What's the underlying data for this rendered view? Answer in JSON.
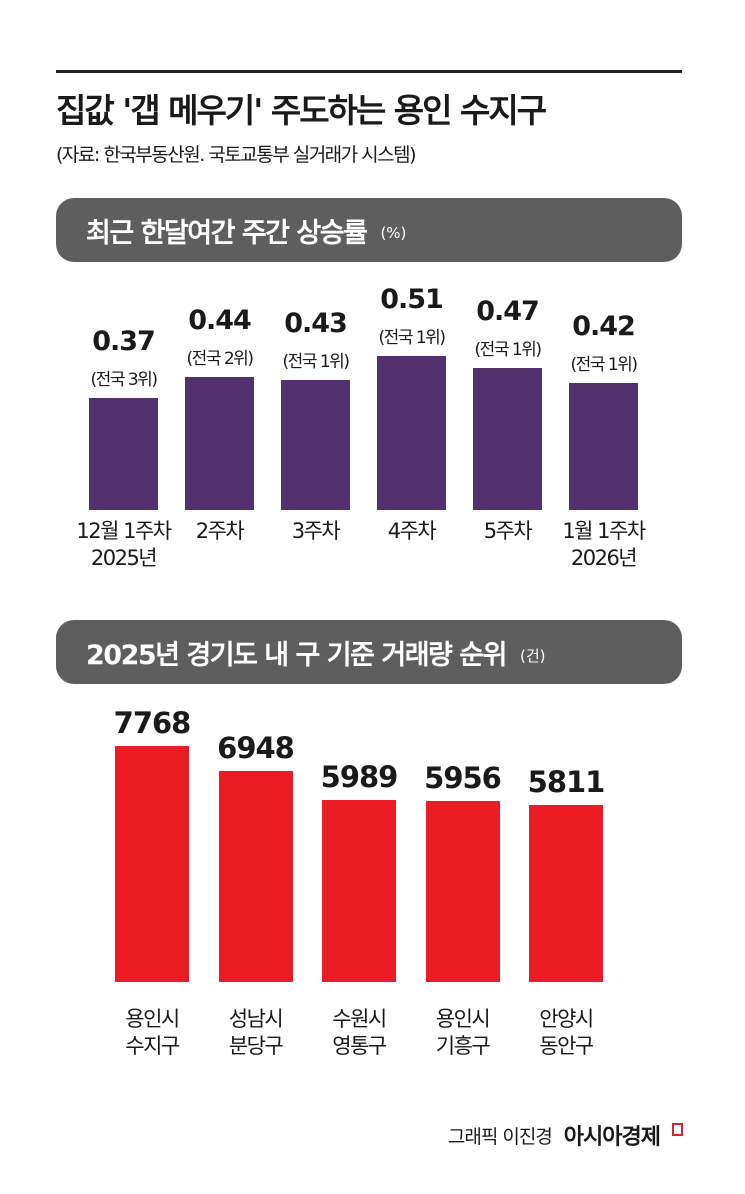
{
  "header": {
    "title": "집값 '갭 메우기' 주도하는 용인 수지구",
    "source": "(자료: 한국부동산원. 국토교통부 실거래가 시스템)"
  },
  "credit": {
    "text": "그래픽 이진경",
    "logo": "아시아경제"
  },
  "chart_data": [
    {
      "type": "bar",
      "title": "최근 한달여간 주간 상승률",
      "unit": "(%)",
      "color": "#55306e",
      "categories": [
        "12월 1주차\n2025년",
        "2주차",
        "3주차",
        "4주차",
        "5주차",
        "1월 1주차\n2026년"
      ],
      "values": [
        0.37,
        0.44,
        0.43,
        0.51,
        0.47,
        0.42
      ],
      "value_labels": [
        "0.37",
        "0.44",
        "0.43",
        "0.51",
        "0.47",
        "0.42"
      ],
      "annotations": [
        "(전국 3위)",
        "(전국 2위)",
        "(전국 1위)",
        "(전국 1위)",
        "(전국 1위)",
        "(전국 1위)"
      ]
    },
    {
      "type": "bar",
      "title": "2025년 경기도 내 구 기준 거래량 순위",
      "unit": "(건)",
      "color": "#ec1c24",
      "categories": [
        "용인시\n수지구",
        "성남시\n분당구",
        "수원시\n영통구",
        "용인시\n기흥구",
        "안양시\n동안구"
      ],
      "values": [
        7768,
        6948,
        5989,
        5956,
        5811
      ],
      "value_labels": [
        "7768",
        "6948",
        "5989",
        "5956",
        "5811"
      ]
    }
  ]
}
